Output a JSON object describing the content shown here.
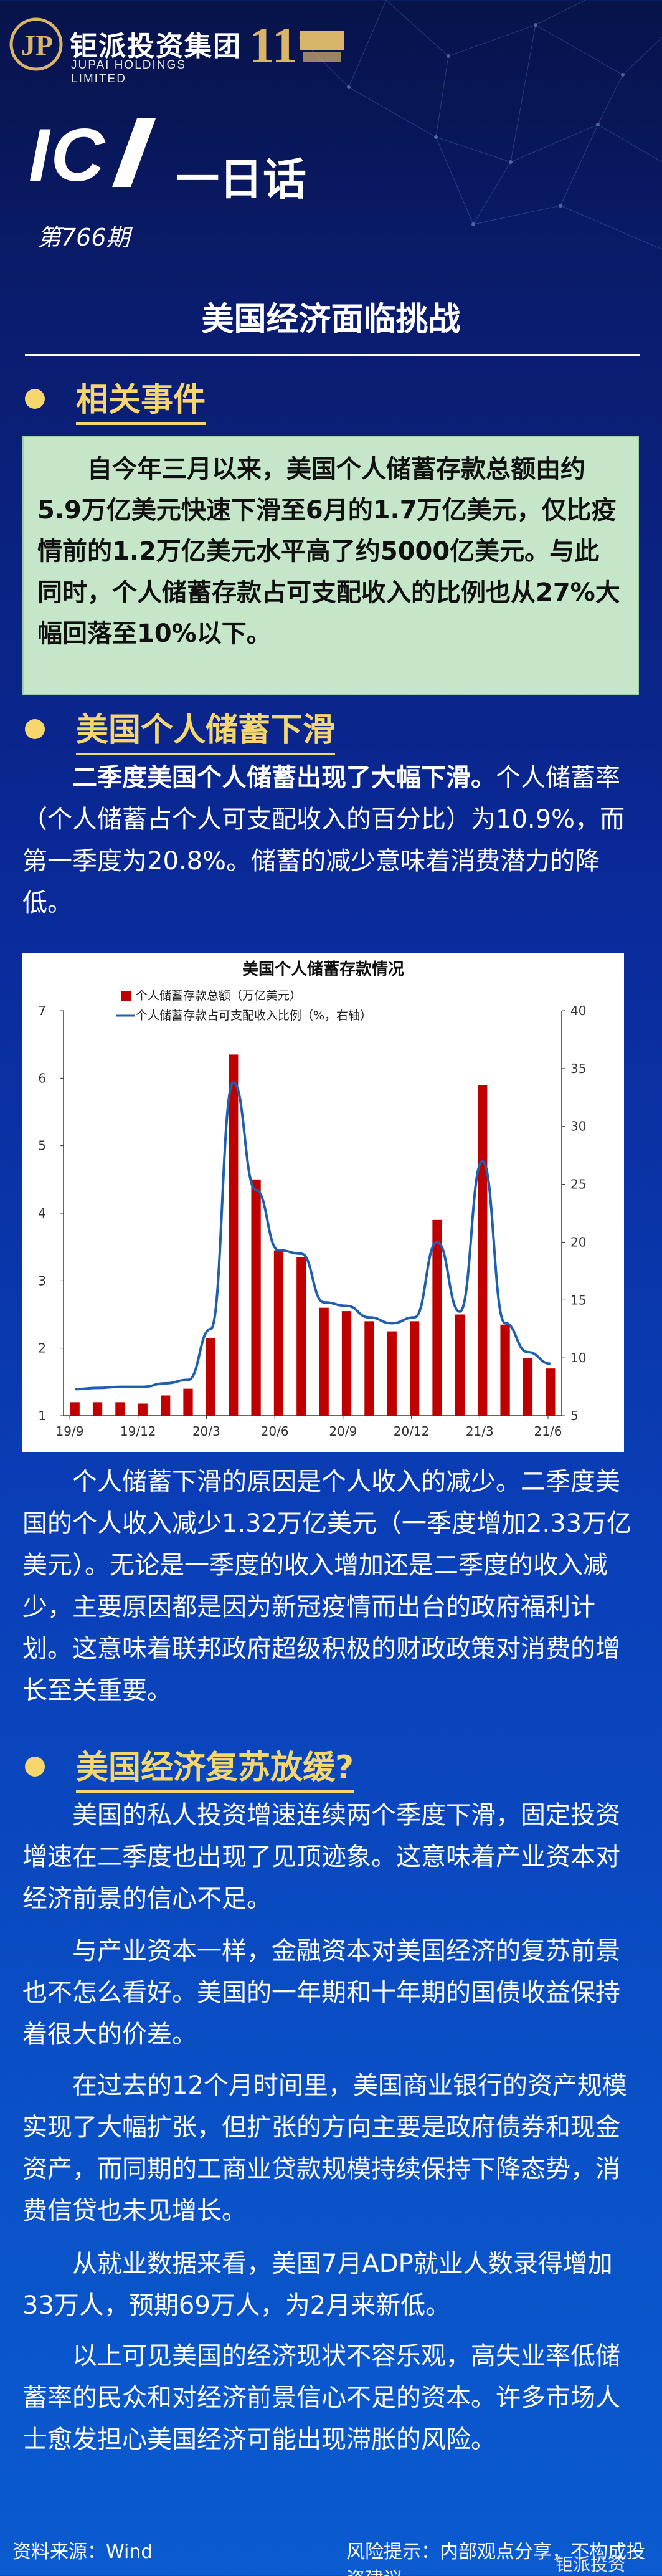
{
  "header": {
    "brand_cn": "钜派投资集团",
    "brand_en": "JUPAI HOLDINGS LIMITED",
    "anniversary": "11",
    "column_title": "IC",
    "column_sub": "一日话",
    "issue": "第766期"
  },
  "headline": "美国经济面临挑战",
  "sections": {
    "s1": "相关事件",
    "s2": "美国个人储蓄下滑",
    "s3": "美国经济复苏放缓?"
  },
  "event_text": "自今年三月以来，美国个人储蓄存款总额由约5.9万亿美元快速下滑至6月的1.7万亿美元，仅比疫情前的1.2万亿美元水平高了约5000亿美元。与此同时，个人储蓄存款占可支配收入的比例也从27%大幅回落至10%以下。",
  "p1_lead": "二季度美国个人储蓄出现了大幅下滑。",
  "p1_rest": "个人储蓄率（个人储蓄占个人可支配收入的百分比）为10.9%，而第一季度为20.8%。储蓄的减少意味着消费潜力的降低。",
  "p2": "个人储蓄下滑的原因是个人收入的减少。二季度美国的个人收入减少1.32万亿美元（一季度增加2.33万亿美元）。无论是一季度的收入增加还是二季度的收入减少，主要原因都是因为新冠疫情而出台的政府福利计划。这意味着联邦政府超级积极的财政政策对消费的增长至关重要。",
  "p3": "美国的私人投资增速连续两个季度下滑，固定投资增速在二季度也出现了见顶迹象。这意味着产业资本对经济前景的信心不足。",
  "p4": "与产业资本一样，金融资本对美国经济的复苏前景也不怎么看好。美国的一年期和十年期的国债收益保持着很大的价差。",
  "p5": "在过去的12个月时间里，美国商业银行的资产规模实现了大幅扩张，但扩张的方向主要是政府债券和现金资产，而同期的工商业贷款规模持续保持下降态势，消费信贷也未见增长。",
  "p6": "从就业数据来看，美国7月ADP就业人数录得增加33万人，预期69万人，为2月来新低。",
  "p7": "以上可见美国的经济现状不容乐观，高失业率低储蓄率的民众和对经济前景信心不足的资本。许多市场人士愈发担心美国经济可能出现滞胀的风险。",
  "footer": {
    "source": "资料来源：Wind",
    "risk": "风险提示：内部观点分享，不构成投资建议",
    "weibo": "钜派投资"
  },
  "colors": {
    "accent_yellow": "#f5d76e",
    "event_bg": "#c5e6c9",
    "bar_red": "#c00000",
    "line_blue": "#1f5fb0"
  },
  "chart_data": {
    "type": "bar",
    "title": "美国个人储蓄存款情况",
    "legend": [
      "个人储蓄存款总额（万亿美元）",
      "个人储蓄存款占可支配收入比例（%，右轴）"
    ],
    "legend_placement": "top-center",
    "x_ticks": [
      "19/9",
      "19/12",
      "20/3",
      "20/6",
      "20/9",
      "20/12",
      "21/3",
      "21/6"
    ],
    "y_left": {
      "lim": [
        1,
        7
      ],
      "ticks": [
        1,
        2,
        3,
        4,
        5,
        6,
        7
      ]
    },
    "y_right": {
      "lim": [
        5,
        40
      ],
      "ticks": [
        5,
        10,
        15,
        20,
        25,
        30,
        35,
        40
      ]
    },
    "series": [
      {
        "name": "个人储蓄存款总额（万亿美元）",
        "type": "bar",
        "values": [
          1.2,
          1.2,
          1.2,
          1.18,
          1.3,
          1.4,
          2.15,
          6.35,
          4.5,
          3.45,
          3.35,
          2.6,
          2.55,
          2.4,
          2.25,
          2.4,
          3.9,
          2.5,
          5.9,
          2.35,
          1.85,
          1.7
        ]
      },
      {
        "name": "个人储蓄存款占可支配收入比例（%，右轴）",
        "type": "line",
        "axis": "right",
        "values": [
          7.3,
          7.4,
          7.5,
          7.5,
          7.8,
          8.1,
          12.5,
          33.8,
          24.5,
          19.3,
          19.0,
          14.8,
          14.5,
          13.5,
          13.0,
          13.5,
          20.0,
          14.0,
          27.0,
          13.0,
          10.5,
          9.5
        ]
      }
    ]
  }
}
